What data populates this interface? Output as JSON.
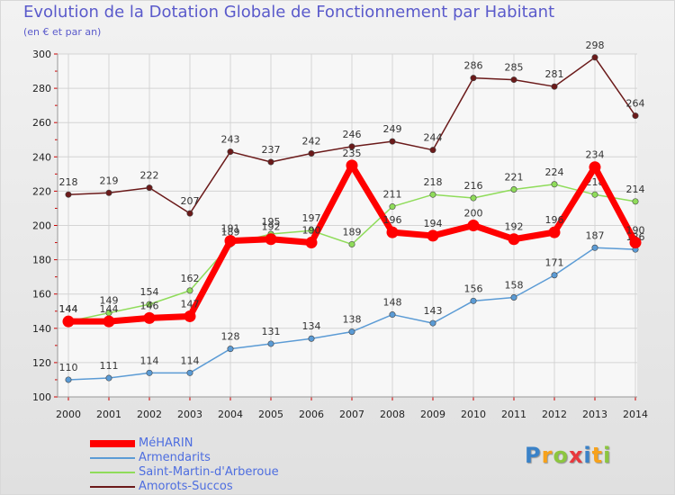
{
  "header": {
    "title": "Evolution de la Dotation Globale de Fonctionnement par Habitant",
    "subtitle": "(en € et par an)"
  },
  "logo": {
    "text": "Proxiti",
    "letters": [
      {
        "ch": "P",
        "color": "#3a82c8"
      },
      {
        "ch": "r",
        "color": "#f7a21b"
      },
      {
        "ch": "o",
        "color": "#8cc63f"
      },
      {
        "ch": "x",
        "color": "#e8383d"
      },
      {
        "ch": "i",
        "color": "#3a82c8"
      },
      {
        "ch": "t",
        "color": "#f7a21b"
      },
      {
        "ch": "i",
        "color": "#8cc63f"
      }
    ]
  },
  "chart_data": {
    "type": "line",
    "title": "Evolution de la Dotation Globale de Fonctionnement par Habitant",
    "ylabel": "(en € et par an)",
    "xlabel": "",
    "categories": [
      "2000",
      "2001",
      "2002",
      "2003",
      "2004",
      "2005",
      "2006",
      "2007",
      "2008",
      "2009",
      "2010",
      "2011",
      "2012",
      "2013",
      "2014"
    ],
    "ylim": [
      100,
      300
    ],
    "yticks": [
      100,
      120,
      140,
      160,
      180,
      200,
      220,
      240,
      260,
      280,
      300
    ],
    "grid": true,
    "series": [
      {
        "name": "Amorots-Succos",
        "color": "#6b1a1a",
        "values": [
          218,
          219,
          222,
          207,
          243,
          237,
          242,
          246,
          249,
          244,
          286,
          285,
          281,
          298,
          264
        ]
      },
      {
        "name": "Saint-Martin-d'Arberoue",
        "color": "#8fdc5a",
        "values": [
          144,
          149,
          154,
          162,
          189,
          195,
          197,
          189,
          211,
          218,
          216,
          221,
          224,
          218,
          214
        ]
      },
      {
        "name": "Armendarits",
        "color": "#5b9bd5",
        "values": [
          110,
          111,
          114,
          114,
          128,
          131,
          134,
          138,
          148,
          143,
          156,
          158,
          171,
          187,
          186
        ]
      },
      {
        "name": "MéHARIN",
        "color": "#ff0000",
        "values": [
          144,
          144,
          146,
          147,
          191,
          192,
          190,
          235,
          196,
          194,
          200,
          192,
          196,
          234,
          190
        ]
      }
    ],
    "legend": [
      "MéHARIN",
      "Armendarits",
      "Saint-Martin-d'Arberoue",
      "Amorots-Succos"
    ]
  }
}
